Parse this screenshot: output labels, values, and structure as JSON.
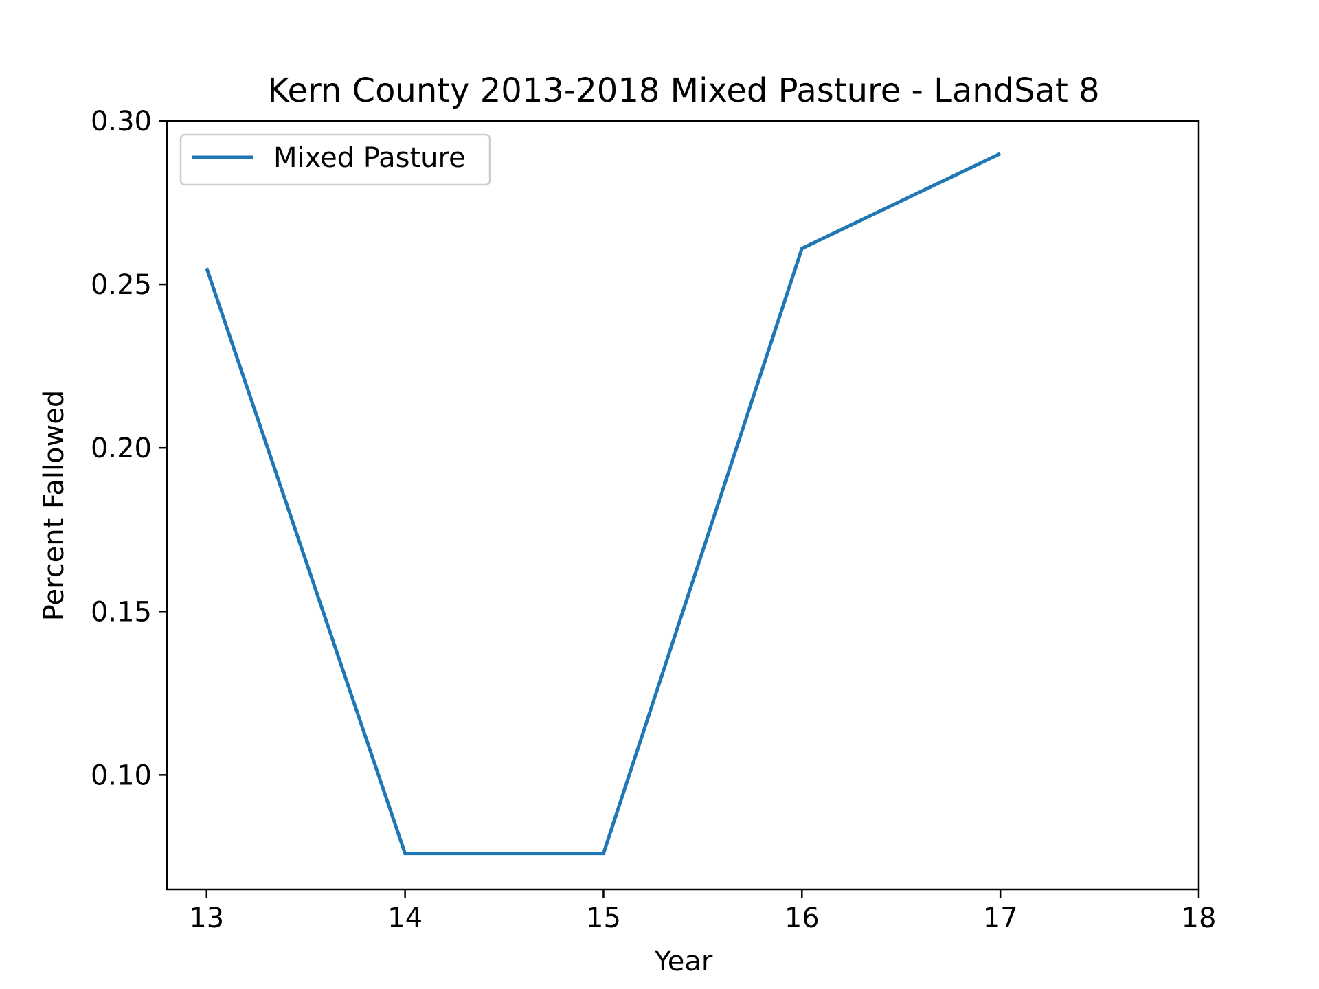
{
  "chart_data": {
    "type": "line",
    "title": "Kern County 2013-2018 Mixed Pasture - LandSat 8",
    "xlabel": "Year",
    "ylabel": "Percent Fallowed",
    "x": [
      13,
      14,
      15,
      16,
      17
    ],
    "series": [
      {
        "name": "Mixed Pasture",
        "values": [
          0.255,
          0.076,
          0.076,
          0.261,
          0.29
        ],
        "color": "#1f77b4"
      }
    ],
    "xlim": [
      12.8,
      18
    ],
    "ylim": [
      0.065,
      0.3
    ],
    "xticks": [
      13,
      14,
      15,
      16,
      17,
      18
    ],
    "xtick_labels": [
      "13",
      "14",
      "15",
      "16",
      "17",
      "18"
    ],
    "yticks": [
      0.1,
      0.15,
      0.2,
      0.25,
      0.3
    ],
    "ytick_labels": [
      "0.10",
      "0.15",
      "0.20",
      "0.25",
      "0.30"
    ],
    "grid": false,
    "legend_position": "top-left"
  }
}
